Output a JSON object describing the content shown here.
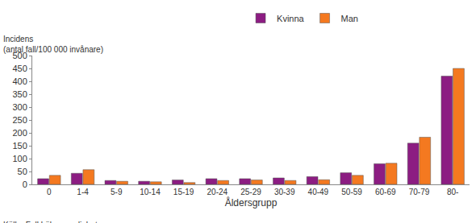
{
  "chart_data": {
    "type": "bar",
    "y_label": [
      "Incidens",
      "(antal fall/100 000 invånare)"
    ],
    "x_label": "Åldersgrupp",
    "annotation": "Källa: Folkhälsomyndigheten",
    "categories": [
      "0",
      "1-4",
      "5-9",
      "10-14",
      "15-19",
      "20-24",
      "25-29",
      "30-39",
      "40-49",
      "50-59",
      "60-69",
      "70-79",
      "80-"
    ],
    "series": [
      {
        "name": "Kvinna",
        "color": "#8c1d82",
        "values": [
          22,
          43,
          15,
          12,
          17,
          22,
          22,
          25,
          30,
          45,
          80,
          160,
          420
        ]
      },
      {
        "name": "Man",
        "color": "#f47920",
        "values": [
          35,
          57,
          12,
          10,
          7,
          15,
          17,
          15,
          18,
          35,
          82,
          183,
          450
        ]
      }
    ],
    "ylim": [
      0,
      500
    ],
    "yticks": [
      0,
      50,
      100,
      150,
      200,
      250,
      300,
      350,
      400,
      450,
      500
    ],
    "grid": false,
    "legend": "top"
  }
}
